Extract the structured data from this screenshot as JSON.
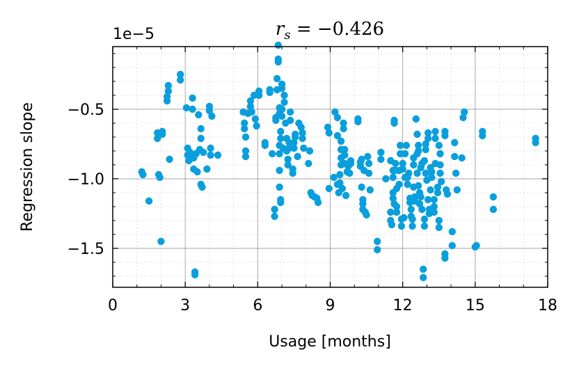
{
  "chart_data": {
    "type": "scatter",
    "title": "r_s = −0.426",
    "title_parts": {
      "var": "r",
      "sub": "s",
      "rest": " = −0.426"
    },
    "offset_label": "1e−5",
    "xlabel": "Usage [months]",
    "ylabel": "Regression slope",
    "xlim": [
      0,
      18
    ],
    "ylim": [
      -1.78,
      -0.05
    ],
    "y_scale_factor": 1e-05,
    "xticks": [
      0,
      3,
      6,
      9,
      12,
      15,
      18
    ],
    "xtick_labels": [
      "0",
      "3",
      "6",
      "9",
      "12",
      "15",
      "18"
    ],
    "yticks": [
      -0.5,
      -1.0,
      -1.5
    ],
    "ytick_labels": [
      "−0.5",
      "−1.0",
      "−1.5"
    ],
    "grid": true,
    "marker_color": "#0a9fdc",
    "points": [
      [
        1.2,
        -0.95
      ],
      [
        1.25,
        -0.97
      ],
      [
        1.5,
        -1.16
      ],
      [
        1.85,
        -0.67
      ],
      [
        1.85,
        -0.71
      ],
      [
        1.9,
        -0.97
      ],
      [
        1.95,
        -0.99
      ],
      [
        2.0,
        -1.45
      ],
      [
        2.05,
        -0.66
      ],
      [
        2.05,
        -0.68
      ],
      [
        2.3,
        -0.33
      ],
      [
        2.3,
        -0.37
      ],
      [
        2.25,
        -0.41
      ],
      [
        2.25,
        -0.44
      ],
      [
        2.35,
        -0.86
      ],
      [
        2.8,
        -0.25
      ],
      [
        2.8,
        -0.29
      ],
      [
        3.05,
        -0.49
      ],
      [
        3.1,
        -0.78
      ],
      [
        3.1,
        -0.83
      ],
      [
        3.15,
        -0.87
      ],
      [
        3.2,
        -0.81
      ],
      [
        3.3,
        -0.42
      ],
      [
        3.3,
        -0.5
      ],
      [
        3.35,
        -0.85
      ],
      [
        3.35,
        -0.93
      ],
      [
        3.4,
        -1.67
      ],
      [
        3.4,
        -1.69
      ],
      [
        3.45,
        -0.82
      ],
      [
        3.5,
        -0.95
      ],
      [
        3.55,
        -0.54
      ],
      [
        3.6,
        -0.79
      ],
      [
        3.65,
        -0.64
      ],
      [
        3.65,
        -0.71
      ],
      [
        3.65,
        -1.04
      ],
      [
        3.7,
        -1.06
      ],
      [
        3.75,
        -0.81
      ],
      [
        3.9,
        -0.93
      ],
      [
        4.0,
        -0.48
      ],
      [
        4.0,
        -0.51
      ],
      [
        4.05,
        -0.78
      ],
      [
        4.05,
        -0.83
      ],
      [
        4.1,
        -0.55
      ],
      [
        4.35,
        -0.83
      ],
      [
        5.4,
        -0.52
      ],
      [
        5.45,
        -0.6
      ],
      [
        5.45,
        -0.64
      ],
      [
        5.5,
        -0.7
      ],
      [
        5.5,
        -0.8
      ],
      [
        5.5,
        -0.84
      ],
      [
        5.6,
        -0.53
      ],
      [
        5.7,
        -0.44
      ],
      [
        5.7,
        -0.48
      ],
      [
        5.75,
        -0.52
      ],
      [
        5.85,
        -0.4
      ],
      [
        5.9,
        -0.57
      ],
      [
        5.95,
        -0.62
      ],
      [
        6.05,
        -0.37
      ],
      [
        6.05,
        -0.4
      ],
      [
        6.3,
        -0.74
      ],
      [
        6.3,
        -0.76
      ],
      [
        6.5,
        -0.36
      ],
      [
        6.5,
        -0.38
      ],
      [
        6.6,
        -0.82
      ],
      [
        6.7,
        -1.22
      ],
      [
        6.7,
        -1.27
      ],
      [
        6.75,
        -0.56
      ],
      [
        6.75,
        -0.58
      ],
      [
        6.8,
        -0.28
      ],
      [
        6.8,
        -0.36
      ],
      [
        6.85,
        -0.04
      ],
      [
        6.85,
        -0.14
      ],
      [
        6.85,
        -0.16
      ],
      [
        6.9,
        -0.49
      ],
      [
        6.9,
        -0.53
      ],
      [
        6.9,
        -0.76
      ],
      [
        6.9,
        -0.82
      ],
      [
        6.9,
        -0.94
      ],
      [
        6.9,
        -1.06
      ],
      [
        6.95,
        -0.66
      ],
      [
        6.95,
        -0.71
      ],
      [
        6.95,
        -1.15
      ],
      [
        6.95,
        -1.17
      ],
      [
        7.0,
        -0.32
      ],
      [
        7.0,
        -0.35
      ],
      [
        7.0,
        -0.5
      ],
      [
        7.0,
        -0.55
      ],
      [
        7.05,
        -0.78
      ],
      [
        7.1,
        -0.4
      ],
      [
        7.1,
        -0.45
      ],
      [
        7.15,
        -0.6
      ],
      [
        7.2,
        -0.71
      ],
      [
        7.2,
        -0.8
      ],
      [
        7.25,
        -0.86
      ],
      [
        7.25,
        -0.9
      ],
      [
        7.3,
        -0.74
      ],
      [
        7.3,
        -0.78
      ],
      [
        7.35,
        -0.52
      ],
      [
        7.35,
        -0.58
      ],
      [
        7.45,
        -0.93
      ],
      [
        7.45,
        -0.96
      ],
      [
        7.5,
        -0.74
      ],
      [
        7.5,
        -0.78
      ],
      [
        7.55,
        -0.68
      ],
      [
        7.55,
        -0.7
      ],
      [
        7.65,
        -0.84
      ],
      [
        7.7,
        -0.6
      ],
      [
        7.8,
        -0.63
      ],
      [
        7.85,
        -0.67
      ],
      [
        7.85,
        -0.71
      ],
      [
        7.9,
        -0.78
      ],
      [
        8.1,
        -0.89
      ],
      [
        8.15,
        -0.8
      ],
      [
        8.2,
        -1.1
      ],
      [
        8.25,
        -1.12
      ],
      [
        8.35,
        -1.13
      ],
      [
        8.45,
        -1.14
      ],
      [
        8.5,
        -1.17
      ],
      [
        8.9,
        -0.63
      ],
      [
        8.95,
        -0.67
      ],
      [
        8.95,
        -1.07
      ],
      [
        9.15,
        -0.99
      ],
      [
        9.2,
        -0.52
      ],
      [
        9.3,
        -0.56
      ],
      [
        9.3,
        -0.69
      ],
      [
        9.3,
        -1.04
      ],
      [
        9.35,
        -1.1
      ],
      [
        9.4,
        -0.97
      ],
      [
        9.4,
        -1.03
      ],
      [
        9.45,
        -0.73
      ],
      [
        9.45,
        -0.79
      ],
      [
        9.45,
        -0.85
      ],
      [
        9.45,
        -0.9
      ],
      [
        9.5,
        -1.07
      ],
      [
        9.55,
        -0.6
      ],
      [
        9.55,
        -0.64
      ],
      [
        9.6,
        -0.79
      ],
      [
        9.6,
        -0.83
      ],
      [
        9.6,
        -0.89
      ],
      [
        9.65,
        -1.12
      ],
      [
        9.7,
        -0.95
      ],
      [
        9.75,
        -0.91
      ],
      [
        9.8,
        -0.96
      ],
      [
        9.85,
        -0.87
      ],
      [
        9.85,
        -0.89
      ],
      [
        10.15,
        -0.57
      ],
      [
        10.15,
        -0.59
      ],
      [
        10.25,
        -0.88
      ],
      [
        10.25,
        -0.91
      ],
      [
        10.3,
        -0.86
      ],
      [
        10.3,
        -1.06
      ],
      [
        10.35,
        -1.15
      ],
      [
        10.35,
        -1.18
      ],
      [
        10.35,
        -1.22
      ],
      [
        10.4,
        -0.94
      ],
      [
        10.45,
        -1.24
      ],
      [
        10.5,
        -1.26
      ],
      [
        10.55,
        -0.84
      ],
      [
        10.6,
        -0.89
      ],
      [
        10.6,
        -0.96
      ],
      [
        10.65,
        -1.08
      ],
      [
        10.95,
        -1.45
      ],
      [
        10.95,
        -1.51
      ],
      [
        11.1,
        -0.81
      ],
      [
        11.1,
        -0.86
      ],
      [
        11.3,
        -1.0
      ],
      [
        11.5,
        -1.24
      ],
      [
        11.5,
        -1.3
      ],
      [
        11.5,
        -0.87
      ],
      [
        11.55,
        -1.33
      ],
      [
        11.6,
        -0.94
      ],
      [
        11.6,
        -0.99
      ],
      [
        11.6,
        -1.1
      ],
      [
        11.6,
        -1.14
      ],
      [
        11.65,
        -0.58
      ],
      [
        11.65,
        -0.6
      ],
      [
        11.65,
        -1.18
      ],
      [
        11.7,
        -0.89
      ],
      [
        11.7,
        -0.94
      ],
      [
        11.75,
        -1.07
      ],
      [
        11.75,
        -1.2
      ],
      [
        11.75,
        -1.24
      ],
      [
        11.85,
        -0.94
      ],
      [
        11.85,
        -1.04
      ],
      [
        11.9,
        -0.76
      ],
      [
        11.9,
        -0.82
      ],
      [
        11.95,
        -1.29
      ],
      [
        11.95,
        -1.34
      ],
      [
        12.0,
        -0.89
      ],
      [
        12.0,
        -0.93
      ],
      [
        12.05,
        -1.28
      ],
      [
        12.1,
        -0.82
      ],
      [
        12.1,
        -0.99
      ],
      [
        12.15,
        -0.76
      ],
      [
        12.2,
        -0.99
      ],
      [
        12.2,
        -1.04
      ],
      [
        12.25,
        -0.96
      ],
      [
        12.3,
        -1.14
      ],
      [
        12.3,
        -1.17
      ],
      [
        12.35,
        -1.22
      ],
      [
        12.35,
        -1.27
      ],
      [
        12.4,
        -1.29
      ],
      [
        12.4,
        -1.34
      ],
      [
        12.45,
        -0.85
      ],
      [
        12.45,
        -0.9
      ],
      [
        12.45,
        -1.06
      ],
      [
        12.5,
        -1.13
      ],
      [
        12.5,
        -1.16
      ],
      [
        12.55,
        -0.57
      ],
      [
        12.6,
        -0.68
      ],
      [
        12.6,
        -0.82
      ],
      [
        12.6,
        -0.96
      ],
      [
        12.65,
        -0.76
      ],
      [
        12.65,
        -0.8
      ],
      [
        12.65,
        -1.05
      ],
      [
        12.7,
        -1.1
      ],
      [
        12.7,
        -1.18
      ],
      [
        12.75,
        -0.92
      ],
      [
        12.75,
        -1.13
      ],
      [
        12.8,
        -0.89
      ],
      [
        12.8,
        -1.22
      ],
      [
        12.85,
        -1.65
      ],
      [
        12.85,
        -1.71
      ],
      [
        12.9,
        -0.87
      ],
      [
        12.9,
        -1.29
      ],
      [
        12.9,
        -1.34
      ],
      [
        12.95,
        -0.75
      ],
      [
        12.95,
        -0.79
      ],
      [
        12.95,
        -0.96
      ],
      [
        13.0,
        -1.01
      ],
      [
        13.05,
        -0.67
      ],
      [
        13.05,
        -0.71
      ],
      [
        13.05,
        -1.15
      ],
      [
        13.1,
        -1.22
      ],
      [
        13.1,
        -1.25
      ],
      [
        13.15,
        -0.92
      ],
      [
        13.15,
        -1.08
      ],
      [
        13.2,
        -0.95
      ],
      [
        13.2,
        -0.99
      ],
      [
        13.3,
        -1.15
      ],
      [
        13.3,
        -1.2
      ],
      [
        13.3,
        -1.24
      ],
      [
        13.35,
        -0.66
      ],
      [
        13.35,
        -0.71
      ],
      [
        13.35,
        -0.89
      ],
      [
        13.45,
        -1.06
      ],
      [
        13.45,
        -1.1
      ],
      [
        13.5,
        -1.3
      ],
      [
        13.5,
        -1.35
      ],
      [
        13.5,
        -0.76
      ],
      [
        13.55,
        -0.82
      ],
      [
        13.55,
        -0.9
      ],
      [
        13.55,
        -0.96
      ],
      [
        13.6,
        -1.02
      ],
      [
        13.75,
        -0.66
      ],
      [
        13.75,
        -0.69
      ],
      [
        13.75,
        -1.54
      ],
      [
        13.75,
        -1.57
      ],
      [
        13.8,
        -1.08
      ],
      [
        13.85,
        -1.11
      ],
      [
        14.05,
        -1.38
      ],
      [
        14.05,
        -1.48
      ],
      [
        14.15,
        -0.74
      ],
      [
        14.15,
        -0.84
      ],
      [
        14.2,
        -0.96
      ],
      [
        14.25,
        -1.08
      ],
      [
        14.45,
        -0.85
      ],
      [
        14.5,
        -0.56
      ],
      [
        14.55,
        -0.52
      ],
      [
        15.0,
        -1.49
      ],
      [
        15.05,
        -1.48
      ],
      [
        15.3,
        -0.66
      ],
      [
        15.3,
        -0.69
      ],
      [
        15.75,
        -1.13
      ],
      [
        15.75,
        -1.22
      ],
      [
        17.5,
        -0.71
      ],
      [
        17.5,
        -0.74
      ]
    ]
  }
}
